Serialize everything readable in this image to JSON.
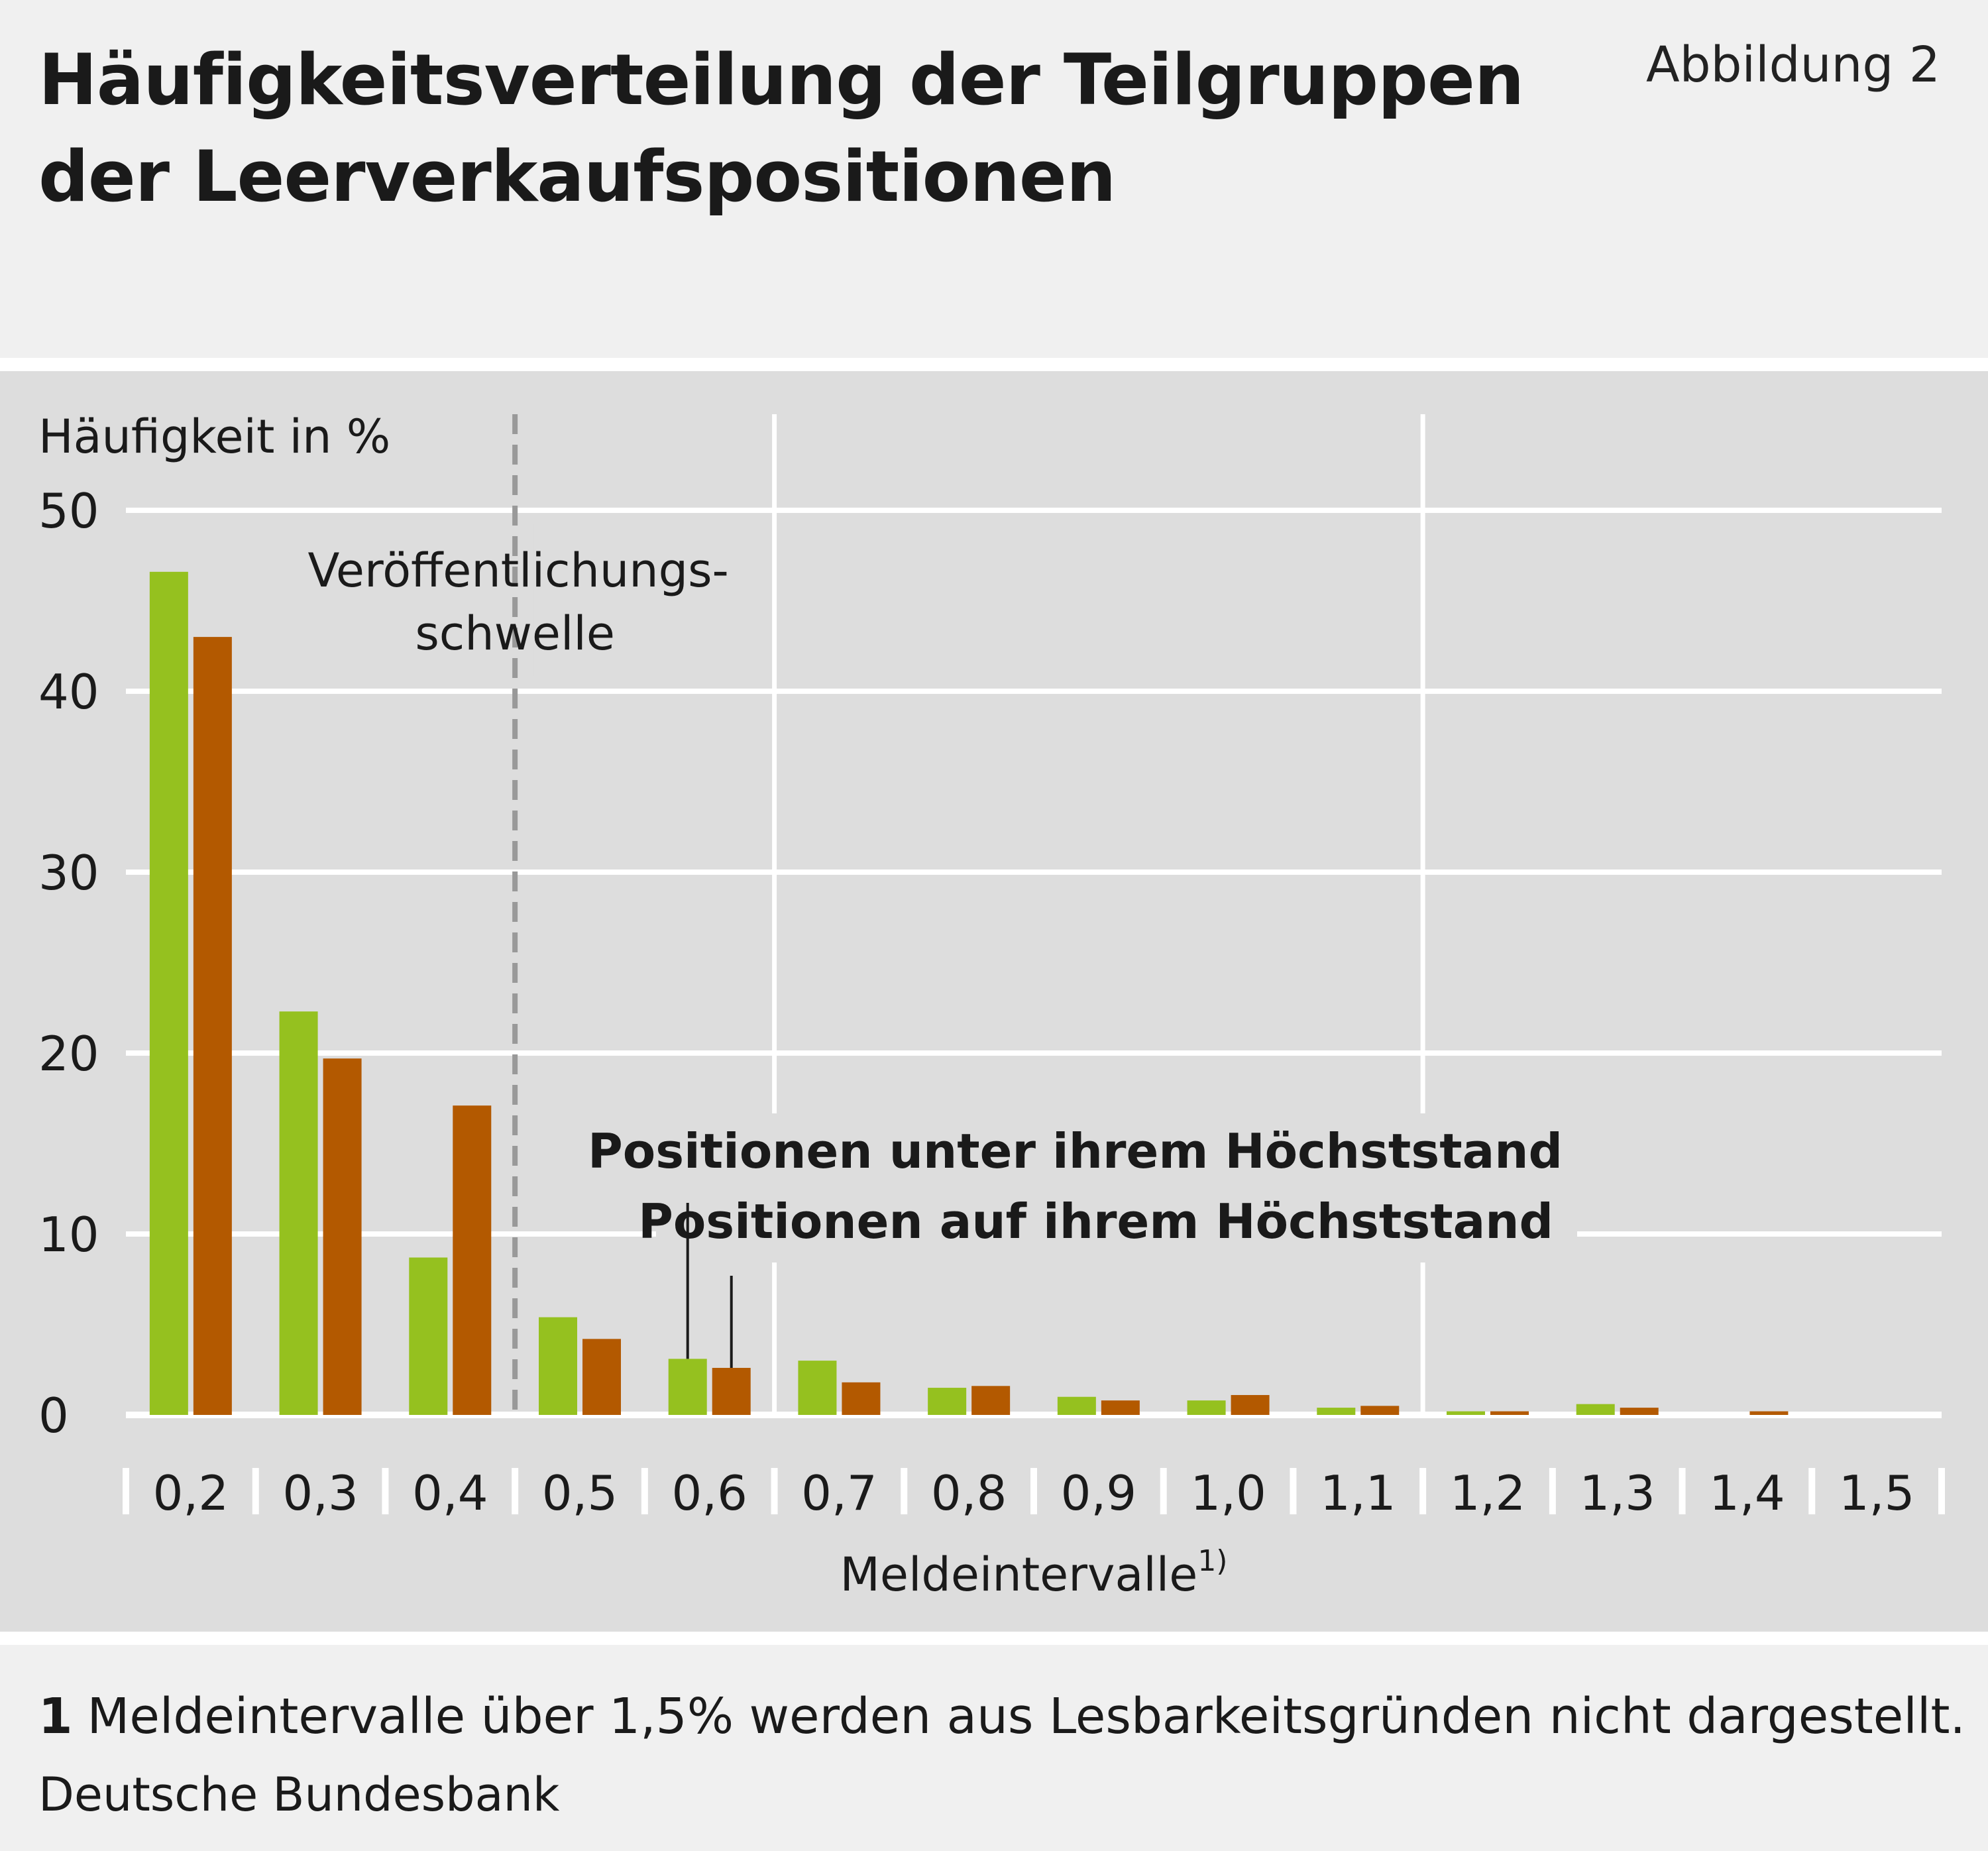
{
  "header": {
    "title_line1": "Häufigkeitsverteilung der Teilgruppen",
    "title_line2": "der Leerverkaufspositionen",
    "figure_no": "Abbildung 2"
  },
  "chart_data": {
    "type": "bar",
    "ylabel": "Häufigkeit in %",
    "xlabel": "Meldeintervalle",
    "xlabel_superscript": "1)",
    "ylim": [
      0,
      50
    ],
    "yticks": [
      0,
      10,
      20,
      30,
      40,
      50
    ],
    "categories": [
      "0,2",
      "0,3",
      "0,4",
      "0,5",
      "0,6",
      "0,7",
      "0,8",
      "0,9",
      "1,0",
      "1,1",
      "1,2",
      "1,3",
      "1,4",
      "1,5"
    ],
    "series": [
      {
        "name": "Positionen unter ihrem Höchststand",
        "color": "#95c11f",
        "values": [
          46.6,
          22.3,
          8.7,
          5.4,
          3.1,
          3.0,
          1.5,
          1.0,
          0.8,
          0.4,
          0.2,
          0.6,
          0.0,
          0.0
        ]
      },
      {
        "name": "Positionen auf ihrem Höchststand",
        "color": "#b35900",
        "values": [
          43.0,
          19.7,
          17.1,
          4.2,
          2.6,
          1.8,
          1.6,
          0.8,
          1.1,
          0.5,
          0.2,
          0.4,
          0.2,
          0.0
        ]
      }
    ],
    "threshold": {
      "label_line1": "Veröffentlichungs-",
      "label_line2": "schwelle",
      "between_categories": [
        "0,4",
        "0,5"
      ],
      "line_color": "#999999"
    },
    "grid": true,
    "legend_placement": "center-right"
  },
  "footer": {
    "footnote_number": "1",
    "footnote_text": "Meldeintervalle über 1,5% werden aus Lesbarkeitsgründen nicht dargestellt.",
    "source": "Deutsche Bundesbank"
  }
}
